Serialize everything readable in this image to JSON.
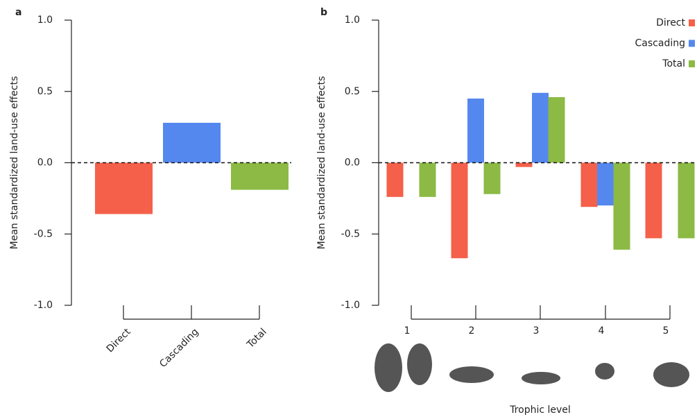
{
  "chart_data": [
    {
      "type": "bar",
      "label": "a",
      "ylabel": "Mean standardized land-use effects",
      "categories": [
        "Direct",
        "Cascading",
        "Total"
      ],
      "values": [
        -0.36,
        0.28,
        -0.19
      ],
      "colors": [
        "#f4604a",
        "#5588ee",
        "#8cba44"
      ],
      "ylim": [
        -1,
        1
      ],
      "yticks": [
        {
          "value": -1,
          "label": "-1.0"
        },
        {
          "value": -0.5,
          "label": "-0.5"
        },
        {
          "value": 0,
          "label": "0.0"
        },
        {
          "value": 0.5,
          "label": "0.5"
        },
        {
          "value": 1,
          "label": "1.0"
        }
      ]
    },
    {
      "type": "grouped-bar",
      "label": "b",
      "ylabel": "Mean standardized land-use effects",
      "xlabel": "Trophic level",
      "categories": [
        "1",
        "2",
        "3",
        "4",
        "5"
      ],
      "series": [
        {
          "name": "Direct",
          "color": "#f4604a",
          "values": [
            -0.24,
            -0.67,
            -0.03,
            -0.31,
            -0.53
          ]
        },
        {
          "name": "Cascading",
          "color": "#5588ee",
          "values": [
            null,
            0.45,
            0.49,
            -0.3,
            null
          ]
        },
        {
          "name": "Total",
          "color": "#8cba44",
          "values": [
            -0.24,
            -0.22,
            0.46,
            -0.61,
            -0.53
          ]
        }
      ],
      "ylim": [
        -1,
        1
      ],
      "yticks": [
        {
          "value": -1,
          "label": "-1.0"
        },
        {
          "value": -0.5,
          "label": "-0.5"
        },
        {
          "value": 0,
          "label": "0.0"
        },
        {
          "value": 0.5,
          "label": "0.5"
        },
        {
          "value": 1,
          "label": "1.0"
        }
      ],
      "legend": "upper right"
    }
  ]
}
